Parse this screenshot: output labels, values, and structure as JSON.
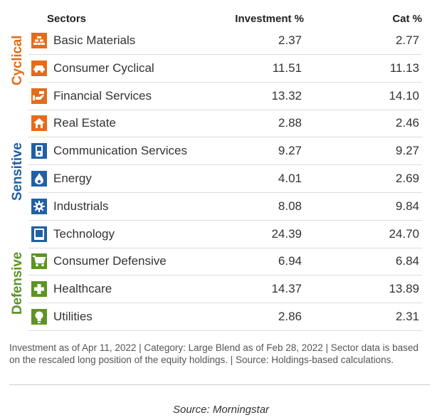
{
  "headers": {
    "sectors": "Sectors",
    "investment": "Investment  %",
    "category": "Cat  %"
  },
  "groups": [
    {
      "label": "Cyclical",
      "color": "#e46c1a"
    },
    {
      "label": "Sensitive",
      "color": "#2060a6"
    },
    {
      "label": "Defensive",
      "color": "#5c9426"
    }
  ],
  "chart_data": {
    "type": "table",
    "columns": [
      "Sectors",
      "Investment  %",
      "Cat  %"
    ],
    "rows": [
      {
        "sector": "Basic Materials",
        "group": "Cyclical",
        "icon": "bricks-icon",
        "investment": "2.37",
        "cat": "2.77"
      },
      {
        "sector": "Consumer Cyclical",
        "group": "Cyclical",
        "icon": "car-icon",
        "investment": "11.51",
        "cat": "11.13"
      },
      {
        "sector": "Financial Services",
        "group": "Cyclical",
        "icon": "money-hand-icon",
        "investment": "13.32",
        "cat": "14.10"
      },
      {
        "sector": "Real Estate",
        "group": "Cyclical",
        "icon": "house-icon",
        "investment": "2.88",
        "cat": "2.46"
      },
      {
        "sector": "Communication Services",
        "group": "Sensitive",
        "icon": "phone-icon",
        "investment": "9.27",
        "cat": "9.27"
      },
      {
        "sector": "Energy",
        "group": "Sensitive",
        "icon": "flame-icon",
        "investment": "4.01",
        "cat": "2.69"
      },
      {
        "sector": "Industrials",
        "group": "Sensitive",
        "icon": "gear-icon",
        "investment": "8.08",
        "cat": "9.84"
      },
      {
        "sector": "Technology",
        "group": "Sensitive",
        "icon": "computer-icon",
        "investment": "24.39",
        "cat": "24.70"
      },
      {
        "sector": "Consumer Defensive",
        "group": "Defensive",
        "icon": "cart-icon",
        "investment": "6.94",
        "cat": "6.84"
      },
      {
        "sector": "Healthcare",
        "group": "Defensive",
        "icon": "cross-icon",
        "investment": "14.37",
        "cat": "13.89"
      },
      {
        "sector": "Utilities",
        "group": "Defensive",
        "icon": "lightbulb-icon",
        "investment": "2.86",
        "cat": "2.31"
      }
    ]
  },
  "footnote": "Investment as of Apr 11, 2022 | Category: Large Blend as of Feb 28, 2022 | Sector data is based on the rescaled long position of the equity holdings. | Source: Holdings-based calculations.",
  "source": "Source: Morningstar"
}
